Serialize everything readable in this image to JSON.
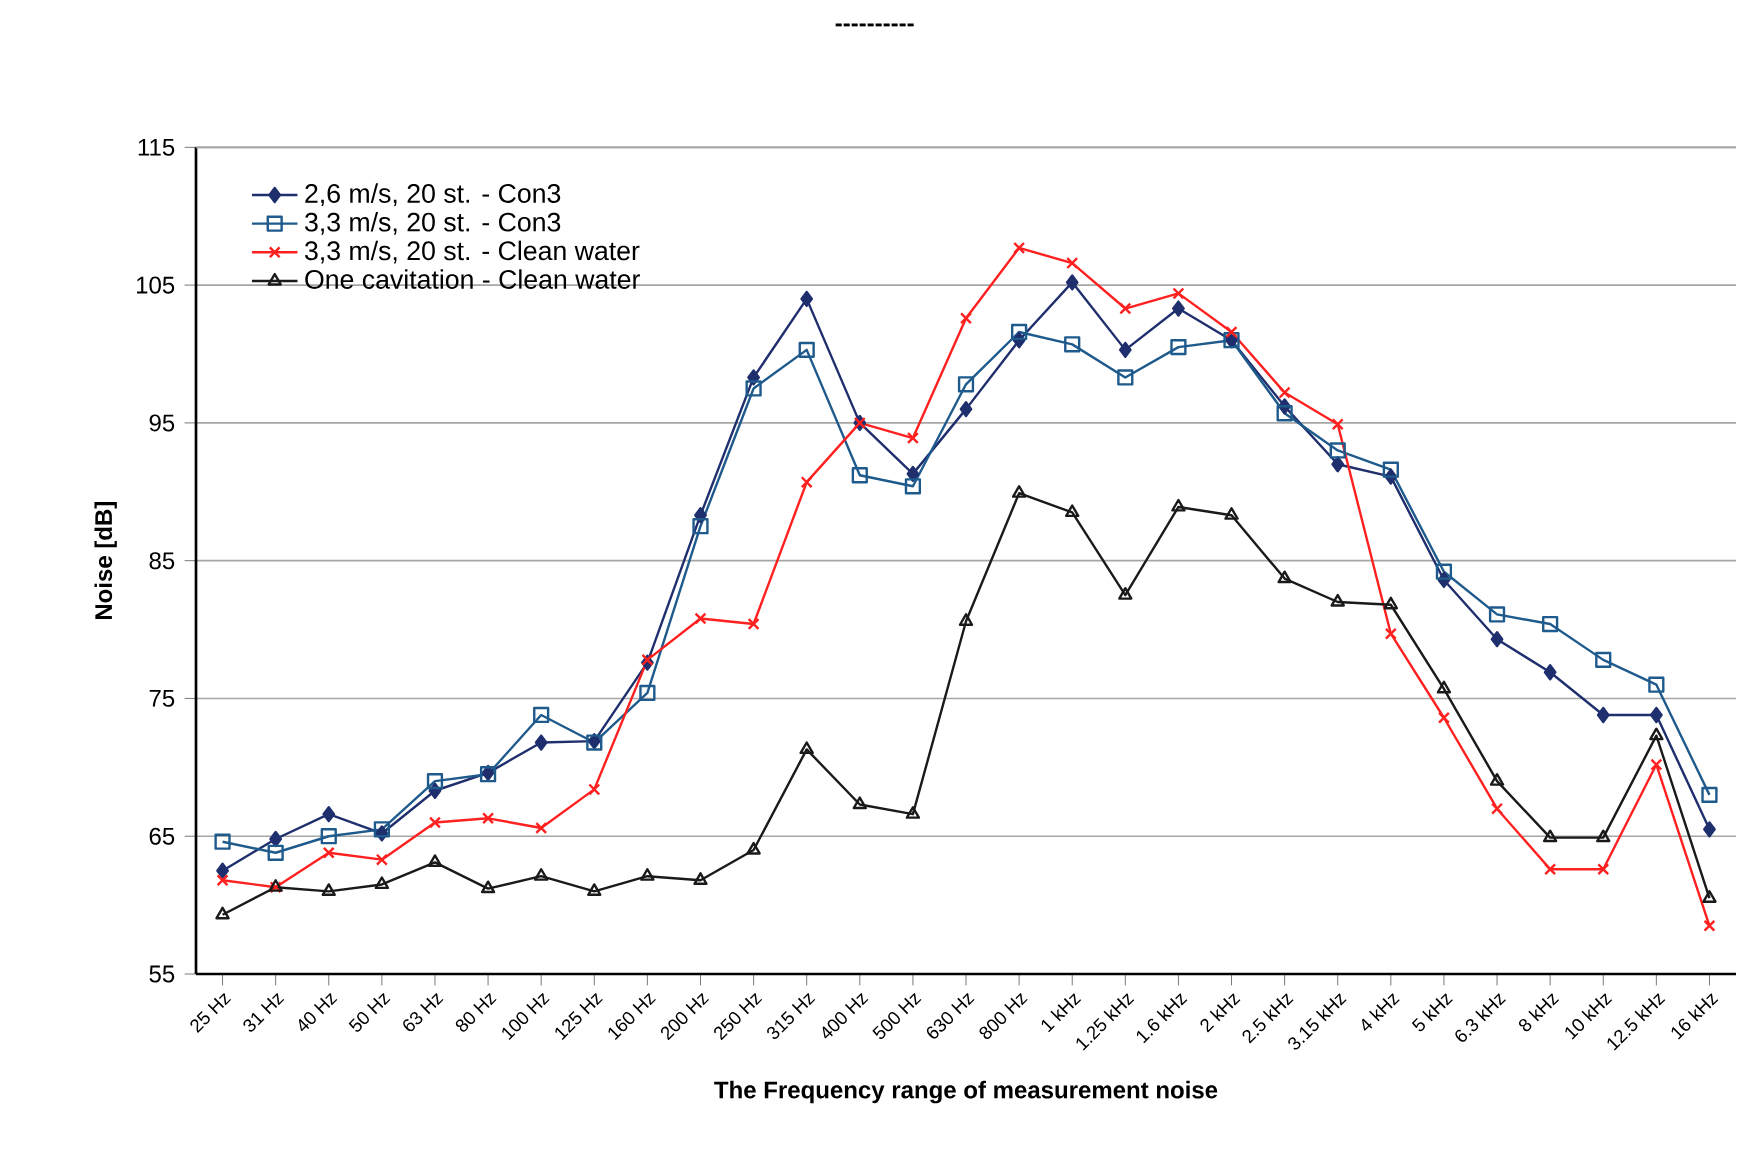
{
  "chart_data": {
    "type": "line",
    "title": "----------",
    "xlabel": "The Frequency range of measurement noise",
    "ylabel": "Noise [dB]",
    "categories": [
      "25 Hz",
      "31 Hz",
      "40 Hz",
      "50 Hz",
      "63 Hz",
      "80 Hz",
      "100 Hz",
      "125 Hz",
      "160 Hz",
      "200 Hz",
      "250 Hz",
      "315 Hz",
      "400 Hz",
      "500 Hz",
      "630 Hz",
      "800 Hz",
      "1 kHz",
      "1.25 kHz",
      "1.6 kHz",
      "2 kHz",
      "2.5 kHz",
      "3.15 kHz",
      "4 kHz",
      "5 kHz",
      "6.3 kHz",
      "8 kHz",
      "10 kHz",
      "12.5 kHz",
      "16 kHz"
    ],
    "series": [
      {
        "name": "2,6 m/s, 20 st. - Con3",
        "color": "#1f2f6e",
        "marker": "diamond",
        "values": [
          62.5,
          64.8,
          66.6,
          65.2,
          68.3,
          69.6,
          71.8,
          71.9,
          77.6,
          88.3,
          98.3,
          104,
          95,
          91.3,
          96,
          101,
          105.2,
          100.3,
          103.3,
          101,
          96.2,
          92,
          91.1,
          83.6,
          79.3,
          76.9,
          73.8,
          73.8,
          65.5
        ]
      },
      {
        "name": "3,3 m/s, 20 st. - Con3",
        "color": "#1f5a8c",
        "marker": "square",
        "values": [
          64.6,
          63.8,
          65,
          65.5,
          69,
          69.5,
          73.8,
          71.8,
          75.4,
          87.5,
          97.5,
          100.3,
          91.2,
          90.4,
          97.8,
          101.6,
          100.7,
          98.3,
          100.5,
          101,
          95.7,
          93,
          91.6,
          84.2,
          81.1,
          80.4,
          77.8,
          76,
          68
        ]
      },
      {
        "name": "3,3 m/s, 20 st. - Clean water",
        "color": "#ff2020",
        "marker": "cross",
        "values": [
          61.8,
          61.3,
          63.8,
          63.3,
          66,
          66.3,
          65.6,
          68.4,
          77.8,
          80.8,
          80.4,
          90.7,
          95,
          93.9,
          102.6,
          107.7,
          106.6,
          103.3,
          104.4,
          101.6,
          97.2,
          94.9,
          79.7,
          73.6,
          67,
          62.6,
          62.6,
          70.2,
          58.5
        ]
      },
      {
        "name": "One cavitation - Clean water",
        "color": "#1a1a1a",
        "marker": "triangle",
        "values": [
          59.3,
          61.3,
          61,
          61.5,
          63.1,
          61.2,
          62.1,
          61,
          62.1,
          61.8,
          64,
          71.3,
          67.3,
          66.6,
          80.6,
          89.9,
          88.5,
          82.5,
          88.9,
          88.3,
          83.7,
          82,
          81.8,
          75.7,
          69,
          64.9,
          64.9,
          72.3,
          60.5
        ]
      }
    ],
    "ylim": [
      55,
      115
    ],
    "yticks": [
      55,
      65,
      75,
      85,
      95,
      105,
      115
    ],
    "grid": "y",
    "legend": "top left",
    "line_style": "solid"
  }
}
